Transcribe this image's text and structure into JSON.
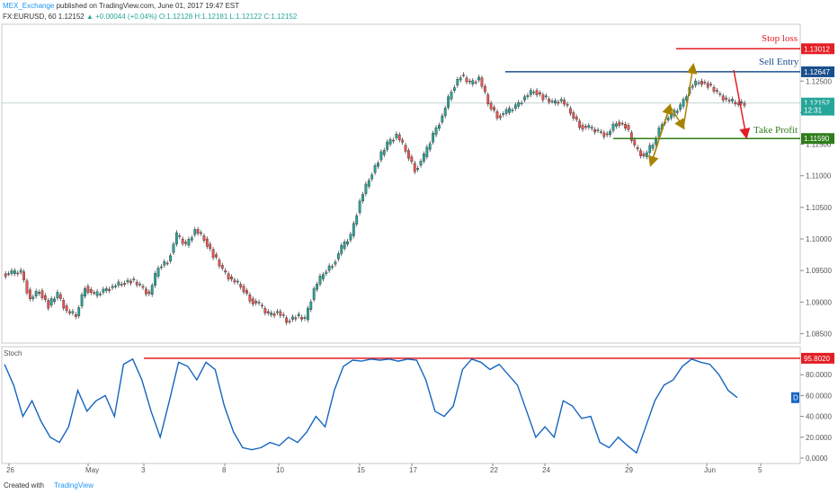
{
  "header": {
    "publisher": "MEX_Exchange",
    "published_text": "published on TradingView.com, June 01, 2017 19:47 EST",
    "symbol_line_prefix": "FX:EURUSD, 60  1.12152",
    "change": "▲ +0.00044 (+0.04%)",
    "ohlc": "O:1.12128 H:1.12181 L:1.12122 C:1.12152"
  },
  "footer": {
    "created_with": "Created with",
    "brand": "TradingView"
  },
  "colors": {
    "up": "#26a69a",
    "down": "#ef5350",
    "candle_outline": "#333333",
    "stop_loss": "#e31e24",
    "sell_entry": "#1a4f8c",
    "take_profit": "#2e7d1a",
    "arrow_gold": "#a88300",
    "arrow_red": "#e31e24",
    "stoch": "#1565c0"
  },
  "annotations": {
    "stop_loss": "Stop loss",
    "sell_entry": "Sell Entry",
    "take_profit": "Take Profit"
  },
  "chart_data": [
    {
      "type": "line",
      "description_series": "EURUSD 60-minute price (approximate path of closes)",
      "x_labels": [
        "26",
        "May",
        "3",
        "8",
        "10",
        "15",
        "17",
        "22",
        "24",
        "29",
        "Jun",
        "5"
      ],
      "ylim": [
        1.0835,
        1.134
      ],
      "y_ticks": [
        "1.12500",
        "1.12000",
        "1.11500",
        "1.11000",
        "1.10500",
        "1.10000",
        "1.09500",
        "1.09000",
        "1.08500"
      ],
      "price_tags": [
        {
          "label": "1.13012",
          "value": 1.13012,
          "kind": "stop_loss"
        },
        {
          "label": "1.12647",
          "value": 1.12647,
          "kind": "sell_entry"
        },
        {
          "label": "1.12152",
          "value": 1.12152,
          "kind": "last"
        },
        {
          "label": "12:31",
          "value": 1.1204,
          "kind": "time"
        },
        {
          "label": "1.11590",
          "value": 1.1159,
          "kind": "take_profit"
        }
      ],
      "levels": [
        {
          "name": "Stop loss",
          "value": 1.13012
        },
        {
          "name": "Sell Entry",
          "value": 1.12647
        },
        {
          "name": "Take Profit",
          "value": 1.1159
        }
      ],
      "x": [
        0,
        1,
        2,
        3,
        4,
        5,
        6,
        7,
        8,
        9,
        10,
        11,
        12,
        13,
        14,
        15,
        16,
        17,
        18,
        19,
        20,
        21,
        22,
        23,
        24,
        25,
        26,
        27,
        28,
        29,
        30,
        31,
        32,
        33,
        34,
        35,
        36,
        37,
        38,
        39,
        40,
        41,
        42,
        43,
        44,
        45,
        46,
        47,
        48,
        49,
        50,
        51,
        52,
        53,
        54,
        55,
        56,
        57,
        58,
        59,
        60,
        61,
        62,
        63,
        64,
        65,
        66,
        67,
        68,
        69,
        70,
        71,
        72,
        73,
        74,
        75,
        76,
        77,
        78,
        79,
        80
      ],
      "y": [
        1.0945,
        1.0948,
        1.0905,
        1.0918,
        1.0895,
        1.0912,
        1.0885,
        1.0878,
        1.0925,
        1.091,
        1.0918,
        1.0925,
        1.093,
        1.0935,
        1.0925,
        1.0912,
        1.0955,
        1.0965,
        1.1005,
        1.099,
        1.1015,
        1.1,
        1.0975,
        1.095,
        1.0935,
        1.0925,
        1.0905,
        1.0895,
        1.088,
        1.0885,
        1.087,
        1.0878,
        1.0872,
        1.092,
        1.0945,
        1.096,
        1.0985,
        1.1005,
        1.106,
        1.1095,
        1.1125,
        1.115,
        1.1165,
        1.114,
        1.111,
        1.113,
        1.1165,
        1.1195,
        1.1235,
        1.126,
        1.1245,
        1.1255,
        1.1215,
        1.1195,
        1.12,
        1.121,
        1.1225,
        1.1235,
        1.1225,
        1.1215,
        1.122,
        1.12,
        1.118,
        1.1175,
        1.117,
        1.1165,
        1.1185,
        1.118,
        1.1145,
        1.113,
        1.115,
        1.1185,
        1.1195,
        1.121,
        1.124,
        1.125,
        1.1245,
        1.123,
        1.122,
        1.1215,
        1.1215
      ]
    },
    {
      "type": "line",
      "name": "Stoch",
      "ylim": [
        0,
        100
      ],
      "y_ticks": [
        "80.0000",
        "60.0000",
        "40.0000",
        "20.0000",
        "0.0000"
      ],
      "price_tags": [
        {
          "label": "95.8020",
          "value": 95.802,
          "kind": "level"
        },
        {
          "label": "D",
          "value": 58,
          "kind": "marker"
        }
      ],
      "levels": [
        {
          "value": 95.802
        }
      ],
      "x": [
        0,
        1,
        2,
        3,
        4,
        5,
        6,
        7,
        8,
        9,
        10,
        11,
        12,
        13,
        14,
        15,
        16,
        17,
        18,
        19,
        20,
        21,
        22,
        23,
        24,
        25,
        26,
        27,
        28,
        29,
        30,
        31,
        32,
        33,
        34,
        35,
        36,
        37,
        38,
        39,
        40,
        41,
        42,
        43,
        44,
        45,
        46,
        47,
        48,
        49,
        50,
        51,
        52,
        53,
        54,
        55,
        56,
        57,
        58,
        59,
        60,
        61,
        62,
        63,
        64,
        65,
        66,
        67,
        68,
        69,
        70,
        71,
        72,
        73,
        74,
        75,
        76,
        77,
        78,
        79,
        80
      ],
      "y": [
        90,
        70,
        40,
        55,
        35,
        20,
        15,
        30,
        65,
        45,
        55,
        60,
        40,
        90,
        95,
        75,
        45,
        20,
        55,
        92,
        88,
        75,
        92,
        85,
        50,
        25,
        10,
        8,
        10,
        15,
        12,
        20,
        15,
        25,
        40,
        30,
        65,
        88,
        94,
        93,
        95,
        94,
        95,
        93,
        95,
        94,
        75,
        45,
        40,
        50,
        85,
        95,
        92,
        85,
        90,
        80,
        70,
        45,
        20,
        30,
        20,
        55,
        50,
        38,
        40,
        15,
        10,
        20,
        12,
        5,
        30,
        55,
        70,
        75,
        88,
        95,
        92,
        90,
        80,
        65,
        58
      ]
    }
  ]
}
